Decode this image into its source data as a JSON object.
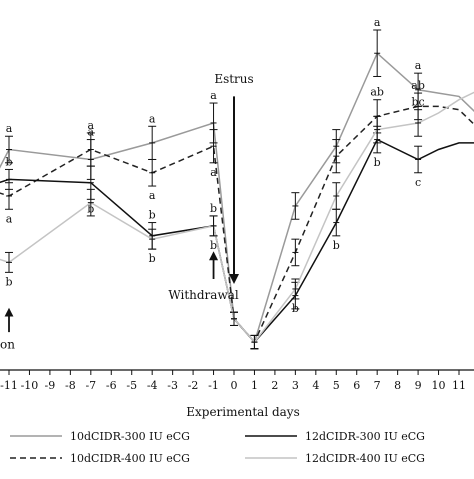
{
  "chart_data": {
    "type": "line",
    "xlabel": "Experimental days",
    "ylabel": "",
    "x": [
      -11,
      -7,
      -4,
      -1,
      0,
      1,
      3,
      5,
      7,
      9,
      11
    ],
    "x_tick_labels": [
      "-11",
      "-10",
      "-9",
      "-8",
      "-7",
      "-6",
      "-5",
      "-4",
      "-3",
      "-2",
      "-1",
      "0",
      "1",
      "2",
      "3",
      "4",
      "5",
      "6",
      "7",
      "8",
      "9",
      "10",
      "11"
    ],
    "ylim": [
      0,
      100
    ],
    "xlim": [
      -11.5,
      11.8
    ],
    "grid": false,
    "legend": "bottom",
    "series": [
      {
        "name": "10dCIDR-300 IU eCG",
        "color": "#9a9a9a",
        "dash": "solid",
        "points": [
          [
            -12,
            52
          ],
          [
            -11,
            64
          ],
          [
            -7,
            61
          ],
          [
            -4,
            66
          ],
          [
            -1,
            72
          ],
          [
            0,
            13
          ],
          [
            1,
            6
          ],
          [
            3,
            47
          ],
          [
            5,
            65
          ],
          [
            7,
            93
          ],
          [
            9,
            82
          ],
          [
            10,
            81
          ],
          [
            11,
            80
          ],
          [
            12,
            74
          ]
        ],
        "errors": [
          [
            -11,
            4
          ],
          [
            -7,
            6
          ],
          [
            -4,
            5
          ],
          [
            -1,
            6
          ],
          [
            0,
            2
          ],
          [
            1,
            2
          ],
          [
            3,
            4
          ],
          [
            5,
            5
          ],
          [
            7,
            7
          ],
          [
            9,
            5
          ]
        ],
        "labels": [
          [
            -11,
            "a",
            "above"
          ],
          [
            -7,
            "a",
            "above"
          ],
          [
            -4,
            "a",
            "above"
          ],
          [
            -1,
            "a",
            "above"
          ],
          [
            7,
            "a",
            "above"
          ],
          [
            9,
            "a",
            "above"
          ]
        ]
      },
      {
        "name": "10dCIDR-400 IU eCG",
        "color": "#222222",
        "dash": "6,4",
        "points": [
          [
            -12,
            52
          ],
          [
            -11,
            50
          ],
          [
            -7,
            64
          ],
          [
            -4,
            57
          ],
          [
            -1,
            65
          ],
          [
            0,
            13
          ],
          [
            1,
            6
          ],
          [
            3,
            33
          ],
          [
            5,
            62
          ],
          [
            7,
            74
          ],
          [
            9,
            77
          ],
          [
            10,
            77
          ],
          [
            11,
            76
          ],
          [
            12,
            70
          ]
        ],
        "errors": [
          [
            -11,
            4
          ],
          [
            -7,
            5
          ],
          [
            -4,
            4
          ],
          [
            -1,
            5
          ],
          [
            0,
            2
          ],
          [
            1,
            2
          ],
          [
            3,
            4
          ],
          [
            5,
            5
          ],
          [
            7,
            5
          ],
          [
            9,
            4
          ]
        ],
        "labels": [
          [
            -11,
            "a",
            "below"
          ],
          [
            -7,
            "a",
            "above"
          ],
          [
            -4,
            "a",
            "below"
          ],
          [
            -1,
            "a",
            "below"
          ],
          [
            7,
            "ab",
            "above"
          ],
          [
            9,
            "ab",
            "above"
          ]
        ]
      },
      {
        "name": "12dCIDR-300 IU eCG",
        "color": "#111111",
        "dash": "solid",
        "points": [
          [
            -12,
            53
          ],
          [
            -11,
            55
          ],
          [
            -7,
            54
          ],
          [
            -4,
            38
          ],
          [
            -1,
            41
          ],
          [
            0,
            13
          ],
          [
            1,
            6
          ],
          [
            3,
            20
          ],
          [
            5,
            42
          ],
          [
            7,
            67
          ],
          [
            9,
            61
          ],
          [
            10,
            64
          ],
          [
            11,
            66
          ],
          [
            12,
            66
          ]
        ],
        "errors": [
          [
            -11,
            3
          ],
          [
            -7,
            5
          ],
          [
            -4,
            4
          ],
          [
            -1,
            3
          ],
          [
            0,
            2
          ],
          [
            1,
            2
          ],
          [
            3,
            4
          ],
          [
            5,
            4
          ],
          [
            7,
            4
          ],
          [
            9,
            4
          ]
        ],
        "labels": [
          [
            -11,
            "b",
            "above"
          ],
          [
            -7,
            "b",
            "below"
          ],
          [
            -4,
            "b",
            "above"
          ],
          [
            -1,
            "b",
            "above"
          ],
          [
            5,
            "b",
            "below"
          ],
          [
            7,
            "b",
            "below"
          ],
          [
            9,
            "c",
            "below"
          ]
        ]
      },
      {
        "name": "12dCIDR-400 IU eCG",
        "color": "#c4c4c4",
        "dash": "solid",
        "points": [
          [
            -12,
            32
          ],
          [
            -11,
            30
          ],
          [
            -7,
            48
          ],
          [
            -4,
            37
          ],
          [
            -1,
            41
          ],
          [
            0,
            13
          ],
          [
            1,
            6
          ],
          [
            3,
            22
          ],
          [
            5,
            50
          ],
          [
            7,
            70
          ],
          [
            9,
            72
          ],
          [
            10,
            75
          ],
          [
            11,
            79
          ],
          [
            12,
            82
          ]
        ],
        "errors": [
          [
            -11,
            3
          ],
          [
            -7,
            4
          ],
          [
            -4,
            3
          ],
          [
            -1,
            3
          ],
          [
            0,
            2
          ],
          [
            1,
            2
          ],
          [
            3,
            3
          ],
          [
            5,
            4
          ],
          [
            7,
            4
          ],
          [
            9,
            4
          ]
        ],
        "labels": [
          [
            -11,
            "b",
            "below"
          ],
          [
            -4,
            "b",
            "below"
          ],
          [
            -1,
            "b",
            "below"
          ],
          [
            3,
            "b",
            "below"
          ],
          [
            9,
            "bc",
            "above"
          ]
        ]
      }
    ],
    "annotations": [
      {
        "text": "Estrus",
        "x": 0,
        "y": 84,
        "arrow": "down",
        "arrow_from": 80,
        "arrow_to": 25
      },
      {
        "text": "Withdrawal",
        "x": -1,
        "y": 19,
        "arrow": "up",
        "arrow_from": 25,
        "arrow_to": 32
      },
      {
        "text": "on",
        "x": -11,
        "y": 4,
        "arrow": "up",
        "arrow_from": 9,
        "arrow_to": 15
      }
    ]
  }
}
